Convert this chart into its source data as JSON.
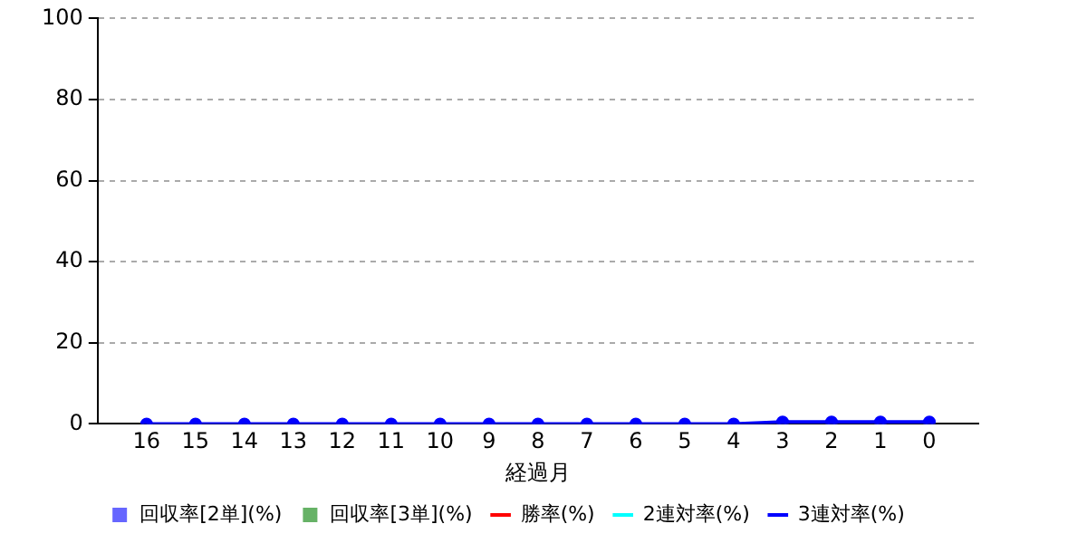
{
  "chart_data": {
    "type": "line",
    "xlabel": "経過月",
    "categories": [
      "16",
      "15",
      "14",
      "13",
      "12",
      "11",
      "10",
      "9",
      "8",
      "7",
      "6",
      "5",
      "4",
      "3",
      "2",
      "1",
      "0"
    ],
    "ylim": [
      0,
      100
    ],
    "yticks": [
      0,
      20,
      40,
      60,
      80,
      100
    ],
    "grid": "y",
    "legend": "bottom",
    "marker": "circle",
    "series": [
      {
        "name": "回収率[2単](%)",
        "type": "bar",
        "color": "#6666ff",
        "values": [
          0,
          0,
          0,
          0,
          0,
          0,
          0,
          0,
          0,
          0,
          0,
          0,
          0,
          0,
          0,
          0,
          0
        ]
      },
      {
        "name": "回収率[3単](%)",
        "type": "bar",
        "color": "#66b266",
        "values": [
          0,
          0,
          0,
          0,
          0,
          0,
          0,
          0,
          0,
          0,
          0,
          0,
          0,
          0,
          0,
          0,
          0
        ]
      },
      {
        "name": "勝率(%)",
        "color": "#ff0000",
        "values": [
          null,
          null,
          null,
          null,
          null,
          null,
          null,
          null,
          null,
          null,
          null,
          null,
          null,
          null,
          null,
          null,
          null
        ]
      },
      {
        "name": "2連対率(%)",
        "color": "#00ffff",
        "values": [
          null,
          null,
          null,
          null,
          null,
          null,
          null,
          null,
          null,
          null,
          null,
          null,
          null,
          null,
          null,
          null,
          null
        ]
      },
      {
        "name": "3連対率(%)",
        "color": "#0000ff",
        "values": [
          0,
          0,
          0,
          0,
          0,
          0,
          0,
          0,
          0,
          0,
          0,
          0,
          0,
          0.5,
          0.5,
          0.5,
          0.5
        ]
      }
    ]
  }
}
